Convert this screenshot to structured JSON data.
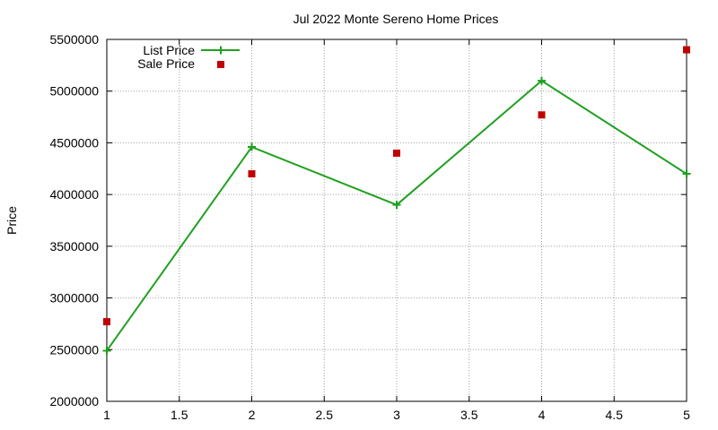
{
  "chart_data": {
    "type": "line",
    "title": "Jul 2022 Monte Sereno Home Prices",
    "xlabel": "",
    "ylabel": "Price",
    "xlim": [
      1,
      5
    ],
    "ylim": [
      2000000,
      5500000
    ],
    "x_ticks": [
      "1",
      "1.5",
      "2",
      "2.5",
      "3",
      "3.5",
      "4",
      "4.5",
      "5"
    ],
    "y_ticks": [
      "2000000",
      "2500000",
      "3000000",
      "3500000",
      "4000000",
      "4500000",
      "5000000",
      "5500000"
    ],
    "grid": true,
    "legend_position": "top-left",
    "series": [
      {
        "name": "List Price",
        "style": "line-with-plus-markers",
        "color": "#1fa01f",
        "x": [
          1,
          2,
          3,
          4,
          5
        ],
        "values": [
          2490000,
          4460000,
          3900000,
          5100000,
          4200000
        ]
      },
      {
        "name": "Sale Price",
        "style": "square-markers",
        "color": "#c00000",
        "x": [
          1,
          2,
          3,
          4,
          5
        ],
        "values": [
          2770000,
          4200000,
          4400000,
          4770000,
          5400000
        ]
      }
    ]
  }
}
